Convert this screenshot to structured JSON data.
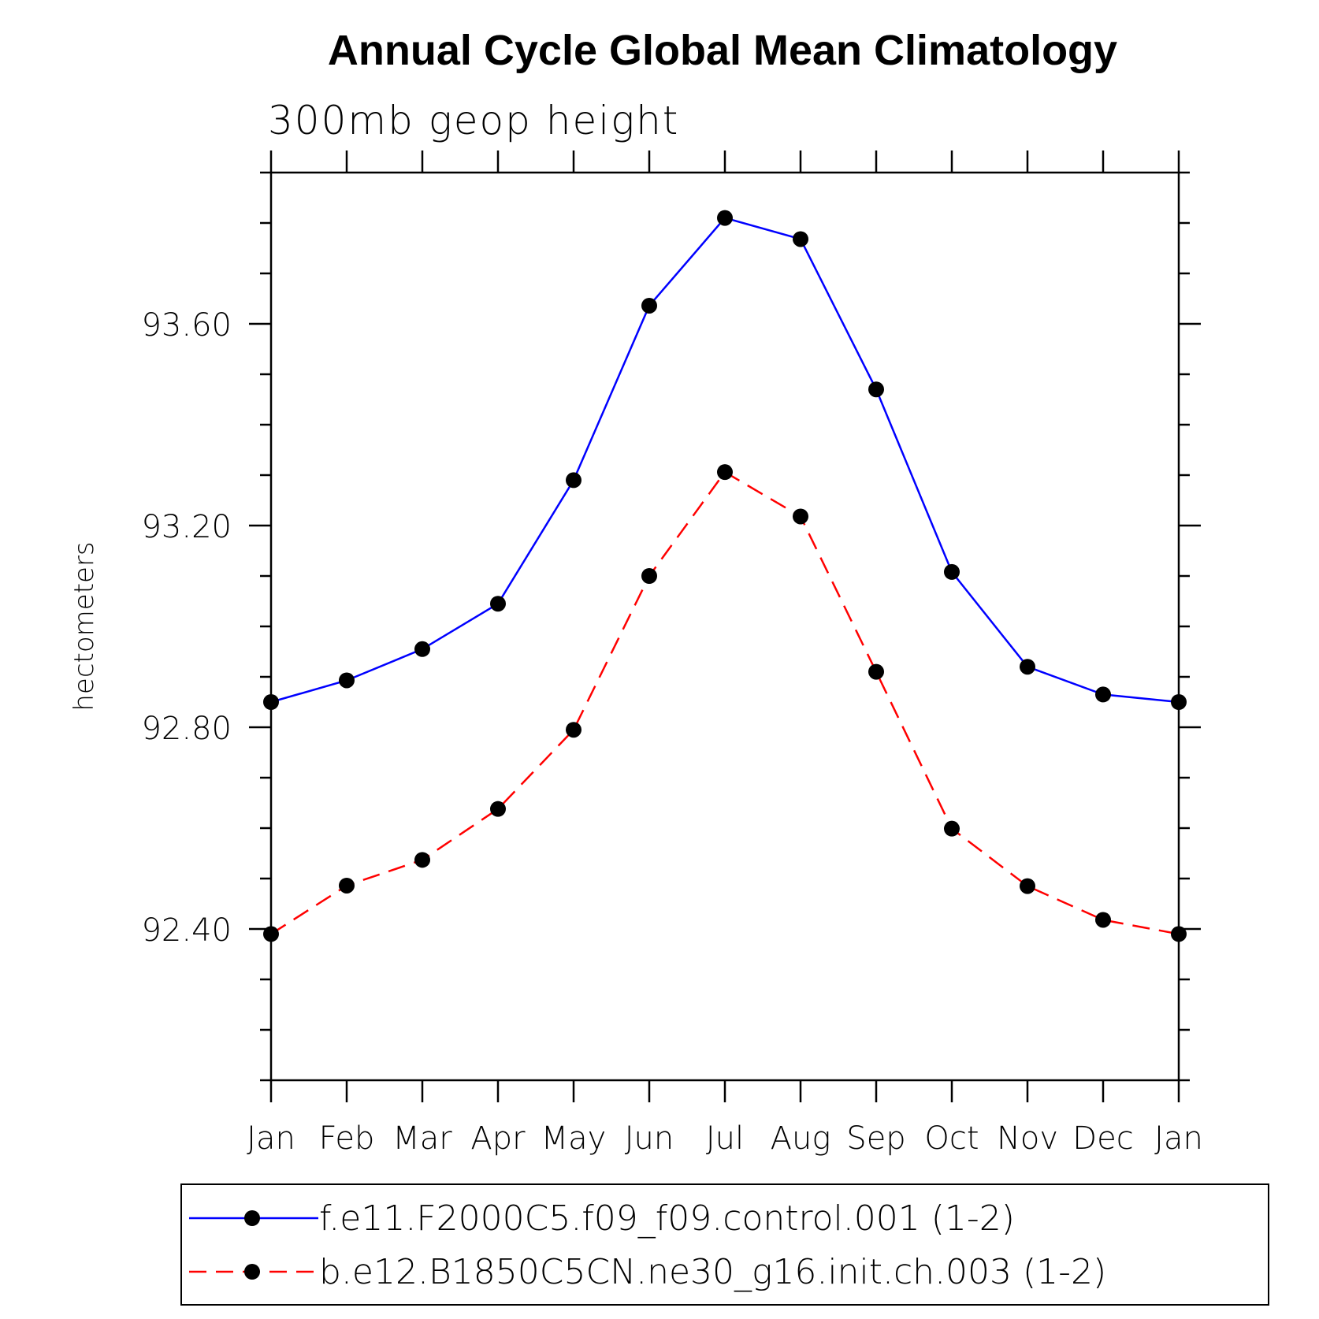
{
  "chart_data": {
    "type": "line",
    "title": "Annual Cycle Global Mean Climatology",
    "subtitle": "300mb geop height",
    "xlabel": "",
    "ylabel": "hectometers",
    "categories": [
      "Jan",
      "Feb",
      "Mar",
      "Apr",
      "May",
      "Jun",
      "Jul",
      "Aug",
      "Sep",
      "Oct",
      "Nov",
      "Dec",
      "Jan"
    ],
    "ylim": [
      92.1,
      93.9
    ],
    "yticks": [
      92.4,
      92.8,
      93.2,
      93.6
    ],
    "ytick_labels": [
      "92.40",
      "92.80",
      "93.20",
      "93.60"
    ],
    "grid": false,
    "legend_position": "bottom",
    "series": [
      {
        "name": "f.e11.F2000C5.f09_f09.control.001 (1-2)",
        "color": "#0000ff",
        "line_style": "solid",
        "marker": "filled-circle",
        "values": [
          92.85,
          92.893,
          92.955,
          93.045,
          93.29,
          93.636,
          93.81,
          93.768,
          93.47,
          93.108,
          92.92,
          92.865,
          92.85
        ]
      },
      {
        "name": "b.e12.B1850C5CN.ne30_g16.init.ch.003 (1-2)",
        "color": "#ff0000",
        "line_style": "dashed",
        "marker": "filled-circle",
        "values": [
          92.39,
          92.486,
          92.537,
          92.638,
          92.795,
          93.1,
          93.306,
          93.218,
          92.91,
          92.599,
          92.485,
          92.418,
          92.39
        ]
      }
    ]
  }
}
